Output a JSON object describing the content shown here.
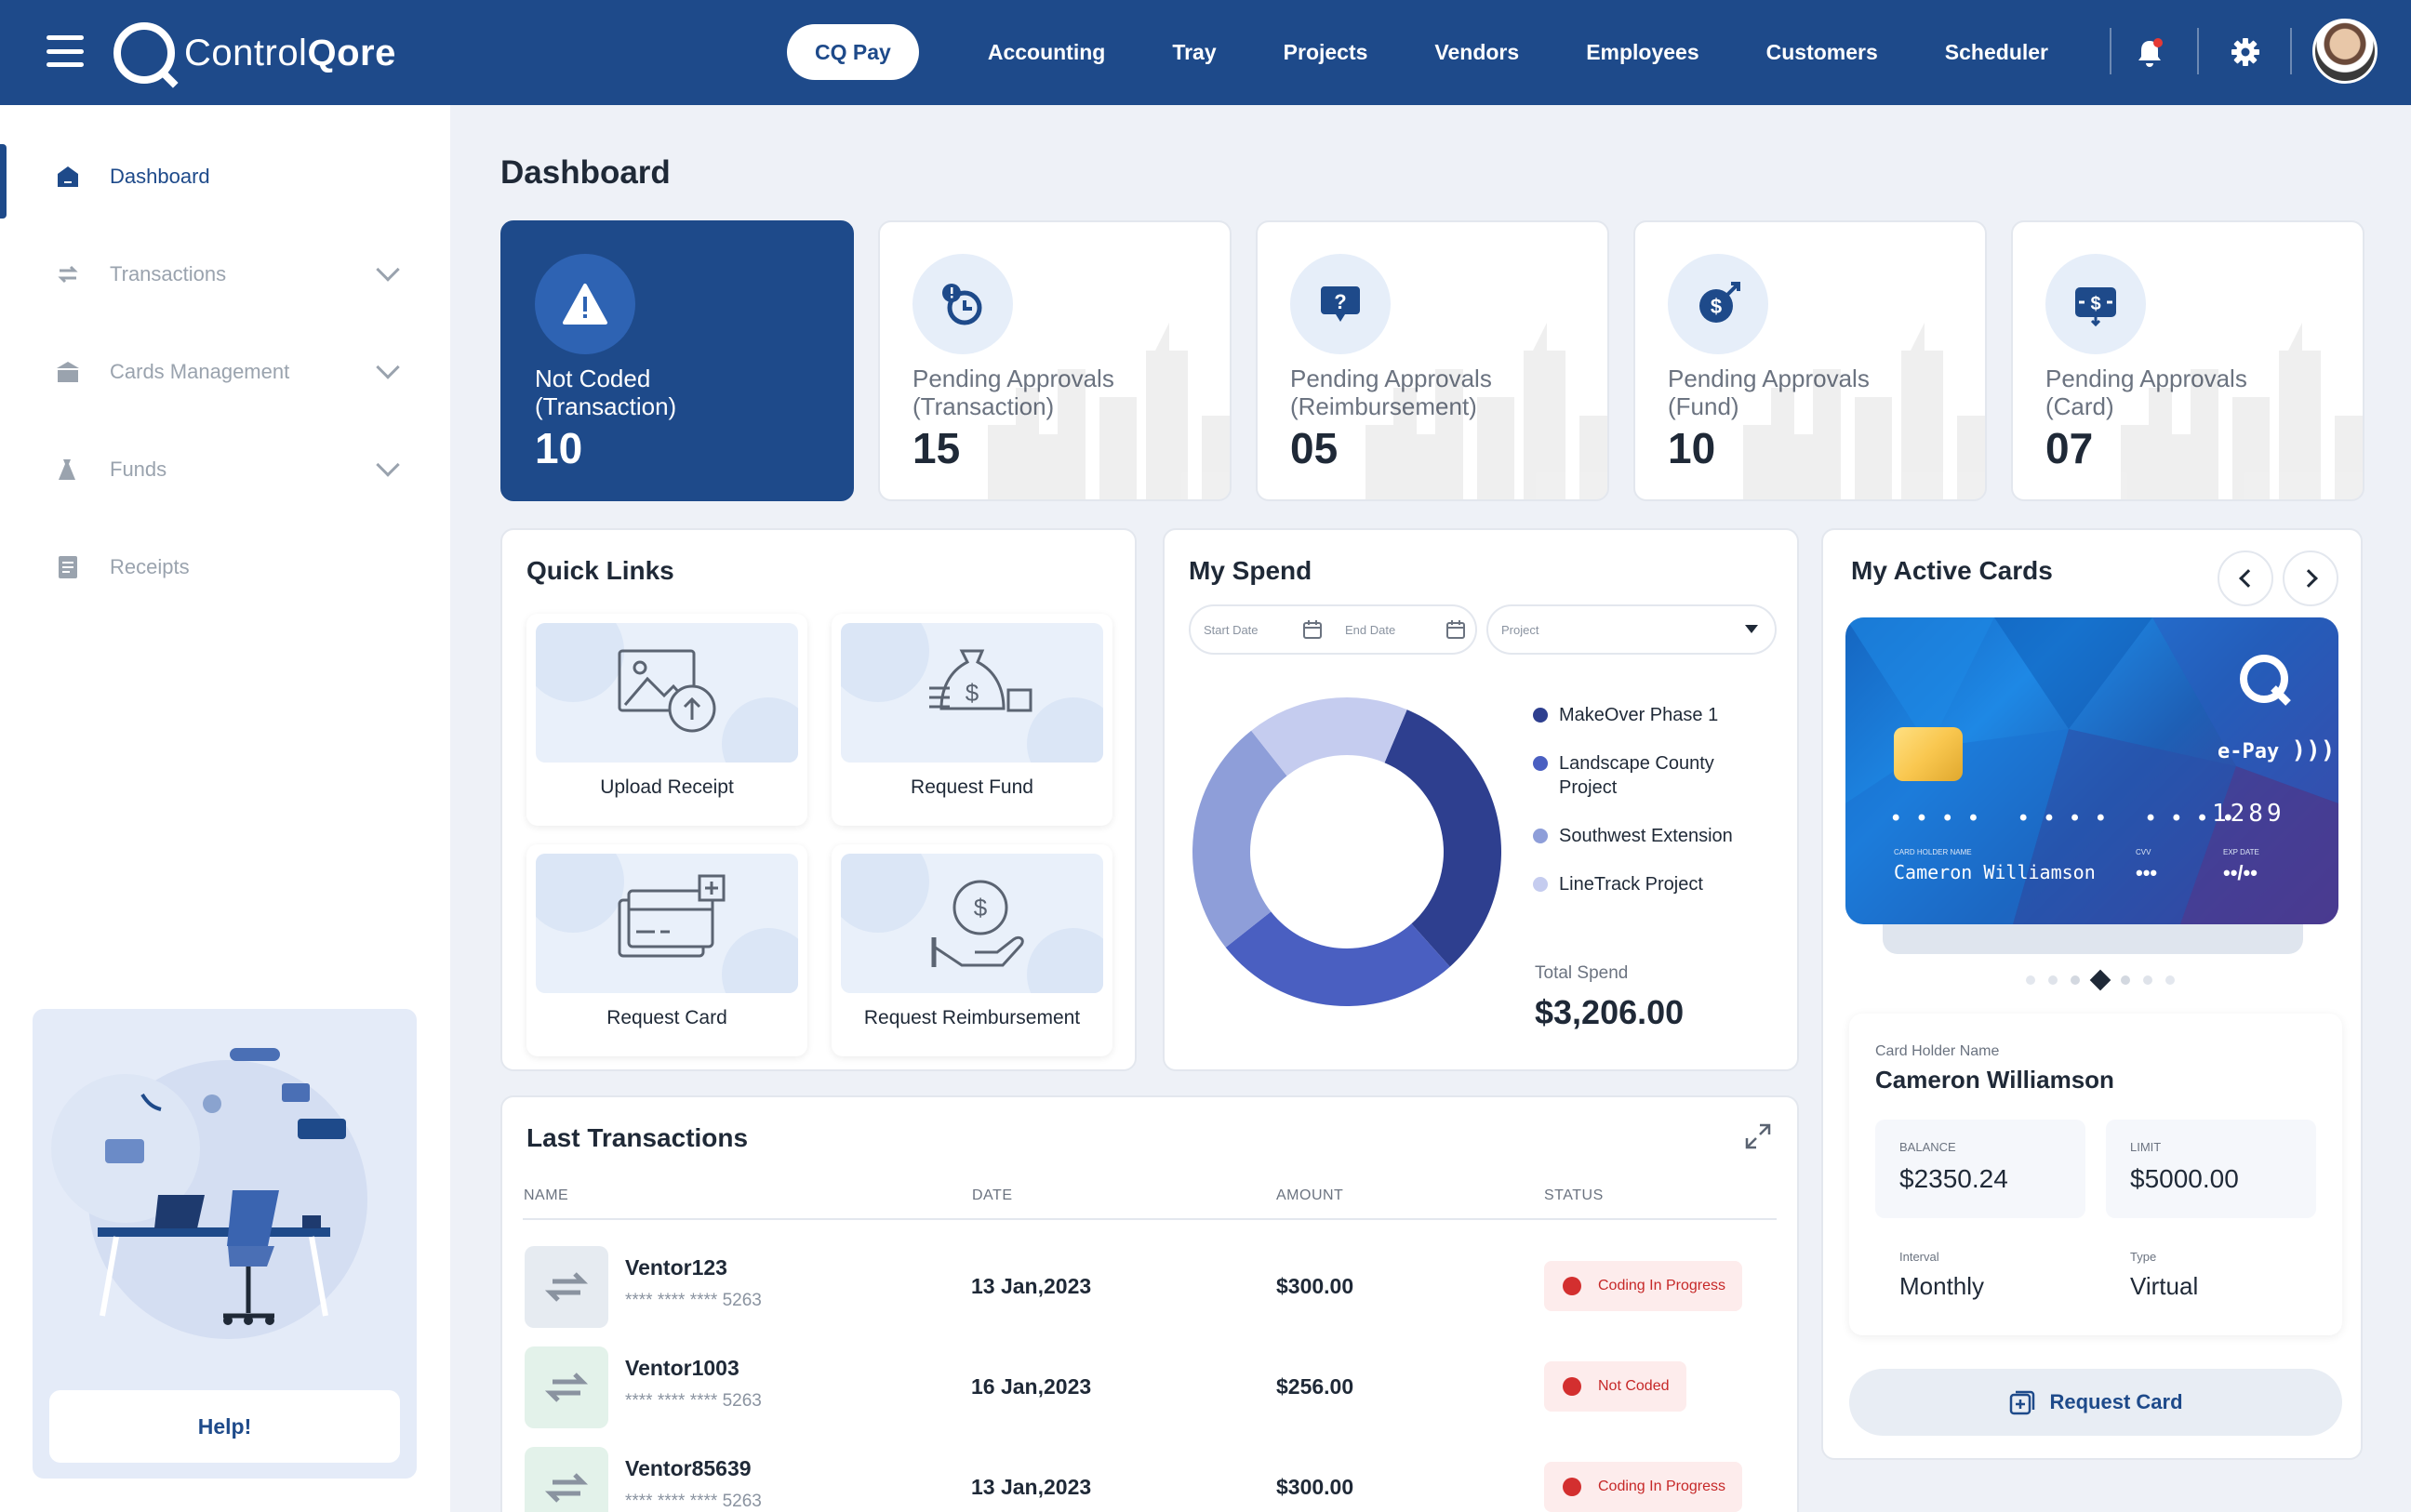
{
  "app": {
    "logo_prefix": "Control",
    "logo_bold": "Qore"
  },
  "nav": {
    "items": [
      "CQ Pay",
      "Accounting",
      "Tray",
      "Projects",
      "Vendors",
      "Employees",
      "Customers",
      "Scheduler"
    ]
  },
  "sidebar": {
    "items": [
      {
        "label": "Dashboard",
        "icon": "home-icon"
      },
      {
        "label": "Transactions",
        "icon": "transfer-icon"
      },
      {
        "label": "Cards Management",
        "icon": "bank-icon"
      },
      {
        "label": "Funds",
        "icon": "funds-icon"
      },
      {
        "label": "Receipts",
        "icon": "receipt-icon"
      }
    ],
    "help_label": "Help!"
  },
  "page": {
    "title": "Dashboard"
  },
  "kpis": [
    {
      "label_line1": "Not Coded",
      "label_line2": "(Transaction)",
      "value": "10"
    },
    {
      "label_line1": "Pending Approvals",
      "label_line2": "(Transaction)",
      "value": "15"
    },
    {
      "label_line1": "Pending Approvals",
      "label_line2": "(Reimbursement)",
      "value": "05"
    },
    {
      "label_line1": "Pending Approvals",
      "label_line2": "(Fund)",
      "value": "10"
    },
    {
      "label_line1": "Pending Approvals",
      "label_line2": "(Card)",
      "value": "07"
    }
  ],
  "quick_links": {
    "title": "Quick Links",
    "items": [
      "Upload Receipt",
      "Request Fund",
      "Request Card",
      "Request Reimbursement"
    ]
  },
  "spend": {
    "title": "My Spend",
    "start_placeholder": "Start Date",
    "end_placeholder": "End Date",
    "project_placeholder": "Project",
    "total_label": "Total Spend",
    "total_value": "$3,206.00"
  },
  "chart_data": {
    "type": "pie",
    "categories": [
      "MakeOver Phase 1",
      "Landscape County Project",
      "Southwest Extension",
      "LineTrack Project"
    ],
    "values": [
      32,
      26,
      25,
      17
    ],
    "colors": [
      "#2e3f8f",
      "#4a5fc1",
      "#8e9ed9",
      "#c5ccef"
    ],
    "title": ""
  },
  "transactions": {
    "title": "Last Transactions",
    "columns": [
      "NAME",
      "DATE",
      "AMOUNT",
      "STATUS"
    ],
    "rows": [
      {
        "name": "Ventor123",
        "card": "**** **** **** 5263",
        "date": "13 Jan,2023",
        "amount": "$300.00",
        "status": "Coding In Progress"
      },
      {
        "name": "Ventor1003",
        "card": "**** **** **** 5263",
        "date": "16 Jan,2023",
        "amount": "$256.00",
        "status": "Not Coded"
      },
      {
        "name": "Ventor85639",
        "card": "**** **** **** 5263",
        "date": "13 Jan,2023",
        "amount": "$300.00",
        "status": "Coding In Progress"
      }
    ]
  },
  "cards": {
    "title": "My Active Cards",
    "card": {
      "brand": "e-Pay",
      "dots": "•  •  •  •     •  •  •  •     •  •  •  •",
      "last4": "1289",
      "holder_caption": "CARD HOLDER NAME",
      "holder": "Cameron Williamson",
      "cvv_caption": "CVV",
      "cvv": "•••",
      "exp_caption": "EXP DATE",
      "exp": "••/••"
    },
    "holder_label": "Card Holder Name",
    "holder_name": "Cameron Williamson",
    "balance_label": "BALANCE",
    "balance": "$2350.24",
    "limit_label": "LIMIT",
    "limit": "$5000.00",
    "interval_label": "Interval",
    "interval": "Monthly",
    "type_label": "Type",
    "type": "Virtual",
    "request_label": "Request Card"
  }
}
